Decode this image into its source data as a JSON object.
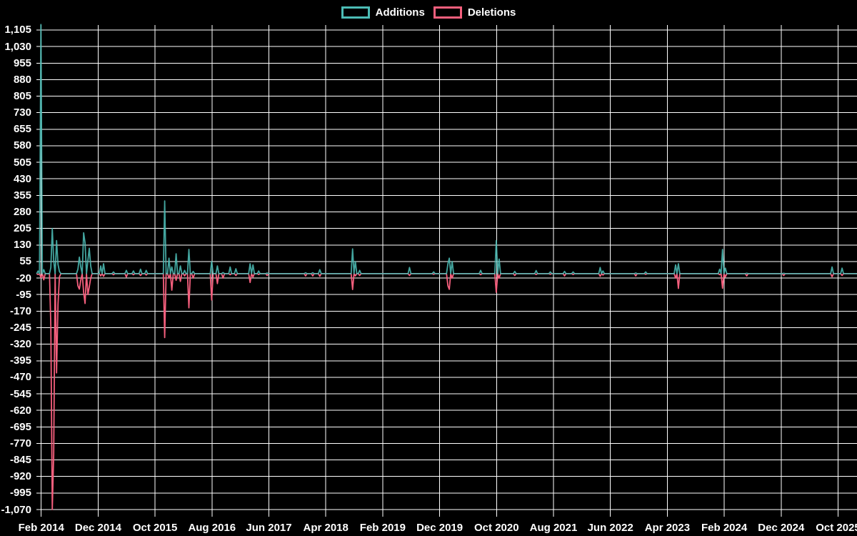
{
  "page": {
    "background": "#000000",
    "grid_color": "#ffffff",
    "text_color": "#ffffff"
  },
  "legend": {
    "position": "top",
    "items": [
      {
        "label": "Additions",
        "color": "#4cbcb5"
      },
      {
        "label": "Deletions",
        "color": "#f55f7d"
      }
    ]
  },
  "chart_data": {
    "type": "line",
    "title": "",
    "xlabel": "",
    "ylabel": "",
    "grid": true,
    "legend_position": "top",
    "series": [
      {
        "name": "Additions",
        "color": "#4cbcb5"
      },
      {
        "name": "Deletions",
        "color": "#f55f7d"
      }
    ],
    "y_axis": {
      "min": -1070,
      "max": 1105,
      "tick_step": 75,
      "tick_labels": [
        "1,105",
        "1,030",
        "955",
        "880",
        "805",
        "730",
        "655",
        "580",
        "505",
        "430",
        "355",
        "280",
        "205",
        "130",
        "55",
        "-20",
        "-95",
        "-170",
        "-245",
        "-320",
        "-395",
        "-470",
        "-545",
        "-620",
        "-695",
        "-770",
        "-845",
        "-920",
        "-995",
        "-1,070"
      ]
    },
    "x_axis": {
      "unit": "months since Feb 2014",
      "tick_interval_months": 10,
      "tick_labels": [
        "Feb 2014",
        "Dec 2014",
        "Oct 2015",
        "Aug 2016",
        "Jun 2017",
        "Apr 2018",
        "Feb 2019",
        "Dec 2019",
        "Oct 2020",
        "Aug 2021",
        "Jun 2022",
        "Apr 2023",
        "Feb 2024",
        "Dec 2024",
        "Oct 2025"
      ]
    },
    "points_format": [
      "months_since_feb_2014",
      "additions",
      "deletions"
    ],
    "points": [
      [
        -0.5,
        12,
        -4
      ],
      [
        0,
        1130,
        -18
      ],
      [
        0.35,
        18,
        -28
      ],
      [
        1.75,
        28,
        -240
      ],
      [
        2.0,
        205,
        -1070
      ],
      [
        2.3,
        58,
        -820
      ],
      [
        2.6,
        150,
        -450
      ],
      [
        2.95,
        42,
        -140
      ],
      [
        3.3,
        10,
        -15
      ],
      [
        6.4,
        20,
        -55
      ],
      [
        6.7,
        75,
        -70
      ],
      [
        7.05,
        30,
        -30
      ],
      [
        7.4,
        185,
        -85
      ],
      [
        7.8,
        140,
        -135
      ],
      [
        8.1,
        60,
        -95
      ],
      [
        8.45,
        115,
        -60
      ],
      [
        8.8,
        35,
        -20
      ],
      [
        10.4,
        35,
        -10
      ],
      [
        10.9,
        45,
        -12
      ],
      [
        12.8,
        8,
        -5
      ],
      [
        14.9,
        15,
        -15
      ],
      [
        16.2,
        12,
        -5
      ],
      [
        17.5,
        20,
        -8
      ],
      [
        18.5,
        15,
        -6
      ],
      [
        21.6,
        330,
        -290
      ],
      [
        22.4,
        70,
        -20
      ],
      [
        22.9,
        30,
        -75
      ],
      [
        23.6,
        90,
        -30
      ],
      [
        24.4,
        35,
        -35
      ],
      [
        25.1,
        15,
        -10
      ],
      [
        25.9,
        110,
        -155
      ],
      [
        26.6,
        10,
        -20
      ],
      [
        29.9,
        55,
        -120
      ],
      [
        30.9,
        35,
        -45
      ],
      [
        31.9,
        5,
        -20
      ],
      [
        33.2,
        30,
        -5
      ],
      [
        34.2,
        22,
        -8
      ],
      [
        36.7,
        45,
        -40
      ],
      [
        37.2,
        40,
        -15
      ],
      [
        38.2,
        12,
        -4
      ],
      [
        39.8,
        3,
        -8
      ],
      [
        46.4,
        4,
        -10
      ],
      [
        47.6,
        4,
        -10
      ],
      [
        49.0,
        18,
        -12
      ],
      [
        54.7,
        112,
        -72
      ],
      [
        55.1,
        55,
        -10
      ],
      [
        55.9,
        15,
        -8
      ],
      [
        64.8,
        28,
        -8
      ],
      [
        69.0,
        8,
        -3
      ],
      [
        71.4,
        45,
        -55
      ],
      [
        71.75,
        70,
        -71
      ],
      [
        72.1,
        55,
        -20
      ],
      [
        77.1,
        15,
        -5
      ],
      [
        80.0,
        150,
        -85
      ],
      [
        80.45,
        66,
        -20
      ],
      [
        83.3,
        10,
        -8
      ],
      [
        86.9,
        14,
        -4
      ],
      [
        89.4,
        8,
        -3
      ],
      [
        91.9,
        10,
        -10
      ],
      [
        93.5,
        8,
        -4
      ],
      [
        98.2,
        28,
        -12
      ],
      [
        98.8,
        12,
        -6
      ],
      [
        104.4,
        3,
        -10
      ],
      [
        106.3,
        8,
        -3
      ],
      [
        111.4,
        40,
        -20
      ],
      [
        111.9,
        45,
        -67
      ],
      [
        119.1,
        20,
        -5
      ],
      [
        119.8,
        110,
        -66
      ],
      [
        120.3,
        25,
        -15
      ],
      [
        123.9,
        2,
        -10
      ],
      [
        130.4,
        2,
        -8
      ],
      [
        138.9,
        30,
        -14
      ],
      [
        140.6,
        25,
        -8
      ]
    ]
  }
}
